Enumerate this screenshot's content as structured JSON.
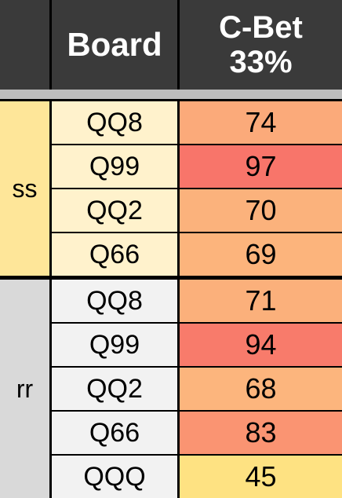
{
  "header": {
    "board": "Board",
    "cbet_line1": "C-Bet",
    "cbet_line2": "33%"
  },
  "groups": [
    {
      "label": "ss",
      "label_color": "#fee699",
      "board_color": "#fff2cc",
      "rows": [
        {
          "board": "QQ8",
          "value": "74",
          "color": "#fbaa7a"
        },
        {
          "board": "Q99",
          "value": "97",
          "color": "#f8756a"
        },
        {
          "board": "QQ2",
          "value": "70",
          "color": "#fbb27c"
        },
        {
          "board": "Q66",
          "value": "69",
          "color": "#fcb47c"
        }
      ]
    },
    {
      "label": "rr",
      "label_color": "#d9d9d9",
      "board_color": "#f2f2f2",
      "rows": [
        {
          "board": "QQ8",
          "value": "71",
          "color": "#fbb07b"
        },
        {
          "board": "Q99",
          "value": "94",
          "color": "#f87b6b"
        },
        {
          "board": "QQ2",
          "value": "68",
          "color": "#fcb57d"
        },
        {
          "board": "Q66",
          "value": "83",
          "color": "#fa9472"
        },
        {
          "board": "QQQ",
          "value": "45",
          "color": "#fee282"
        }
      ]
    }
  ]
}
